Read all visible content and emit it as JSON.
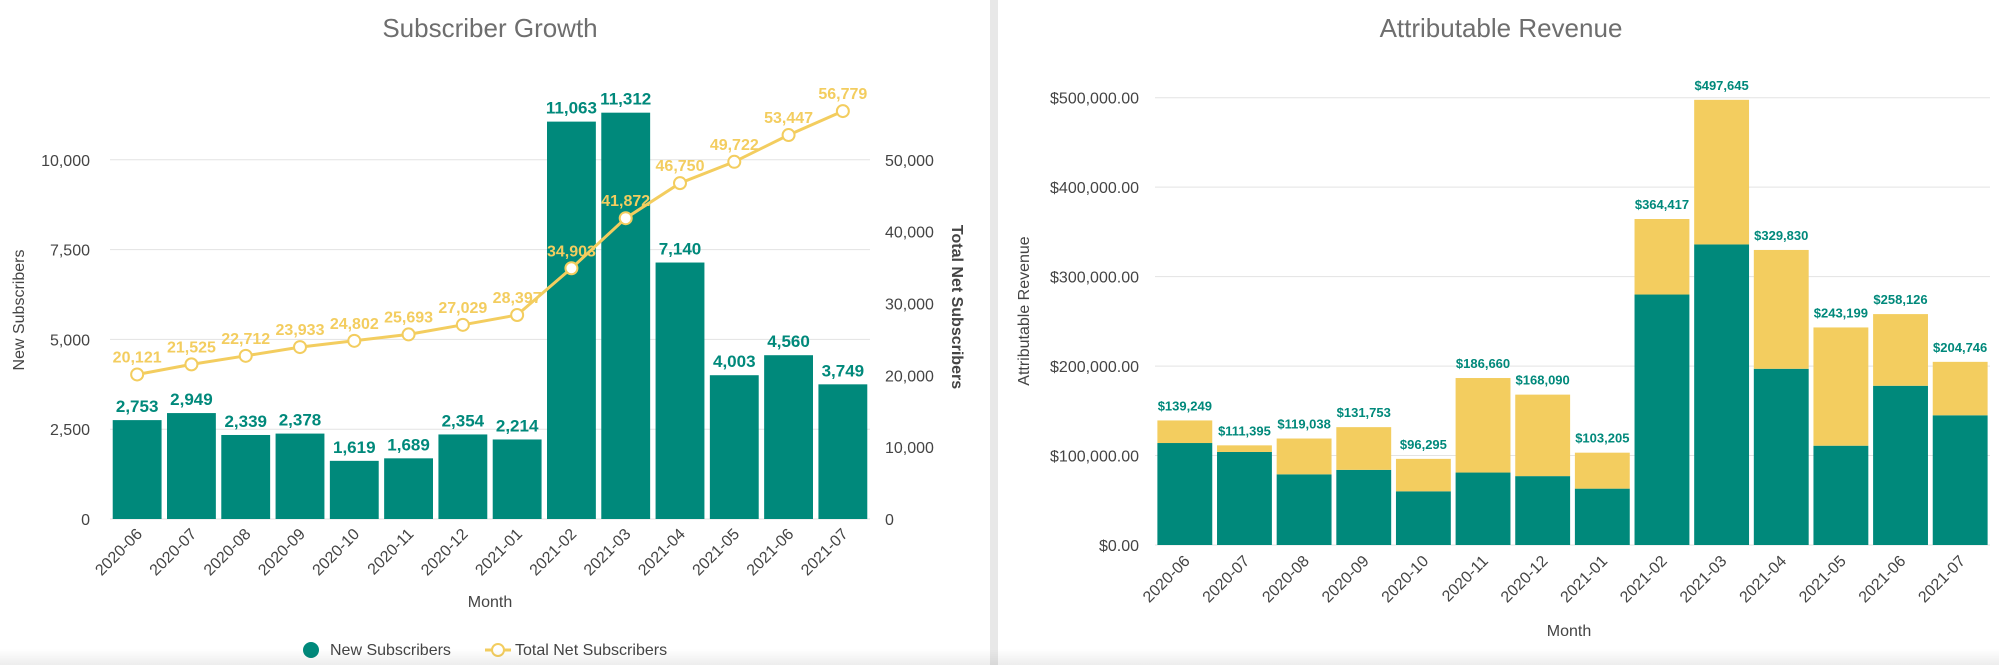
{
  "colors": {
    "teal": "#00897b",
    "gold": "#f3cd5f",
    "title": "#6e6e6e",
    "text": "#444444",
    "grid": "#e3e3e3"
  },
  "chart_data": [
    {
      "type": "bar",
      "title": "Subscriber Growth",
      "xlabel": "Month",
      "ylabel": "New Subscribers",
      "y2label": "Total Net Subscribers",
      "ylim": [
        0,
        12500
      ],
      "y2lim": [
        0,
        62500
      ],
      "yticks": [
        "0",
        "2,500",
        "5,000",
        "7,500",
        "10,000"
      ],
      "y2ticks": [
        "0",
        "10,000",
        "20,000",
        "30,000",
        "40,000",
        "50,000"
      ],
      "categories": [
        "2020-06",
        "2020-07",
        "2020-08",
        "2020-09",
        "2020-10",
        "2020-11",
        "2020-12",
        "2021-01",
        "2021-02",
        "2021-03",
        "2021-04",
        "2021-05",
        "2021-06",
        "2021-07"
      ],
      "series": [
        {
          "name": "New Subscribers",
          "type": "bar",
          "axis": "left",
          "values": [
            2753,
            2949,
            2339,
            2378,
            1619,
            1689,
            2354,
            2214,
            11063,
            11312,
            7140,
            4003,
            4560,
            3749
          ],
          "labels": [
            "2,753",
            "2,949",
            "2,339",
            "2,378",
            "1,619",
            "1,689",
            "2,354",
            "2,214",
            "11,063",
            "11,312",
            "7,140",
            "4,003",
            "4,560",
            "3,749"
          ]
        },
        {
          "name": "Total Net Subscribers",
          "type": "line",
          "axis": "right",
          "values": [
            20121,
            21525,
            22712,
            23933,
            24802,
            25693,
            27029,
            28397,
            34903,
            41872,
            46750,
            49722,
            53447,
            56779
          ],
          "labels": [
            "20,121",
            "21,525",
            "22,712",
            "23,933",
            "24,802",
            "25,693",
            "27,029",
            "28,397",
            "34,903",
            "41,872",
            "46,750",
            "49,722",
            "53,447",
            "56,779"
          ]
        }
      ],
      "legend": [
        "New Subscribers",
        "Total Net Subscribers"
      ],
      "legend_position": "bottom"
    },
    {
      "type": "bar",
      "stacked": true,
      "title": "Attributable Revenue",
      "xlabel": "Month",
      "ylabel": "Attributable Revenue",
      "ylim": [
        0,
        550000
      ],
      "yticks": [
        "$0.00",
        "$100,000.00",
        "$200,000.00",
        "$300,000.00",
        "$400,000.00",
        "$500,000.00"
      ],
      "categories": [
        "2020-06",
        "2020-07",
        "2020-08",
        "2020-09",
        "2020-10",
        "2020-11",
        "2020-12",
        "2021-01",
        "2021-02",
        "2021-03",
        "2021-04",
        "2021-05",
        "2021-06",
        "2021-07"
      ],
      "series": [
        {
          "name": "lower segment",
          "color": "teal",
          "values": [
            114000,
            104000,
            79000,
            84000,
            60000,
            81000,
            77000,
            63000,
            280000,
            336000,
            197000,
            111000,
            178000,
            145000
          ]
        },
        {
          "name": "upper segment",
          "color": "gold",
          "values": [
            25249,
            7395,
            40038,
            47753,
            36295,
            105660,
            91090,
            40205,
            84417,
            161645,
            132830,
            132199,
            80126,
            59746
          ]
        }
      ],
      "totals": [
        139249,
        111395,
        119038,
        131753,
        96295,
        186660,
        168090,
        103205,
        364417,
        497645,
        329830,
        243199,
        258126,
        204746
      ],
      "total_labels": [
        "$139,249",
        "$111,395",
        "$119,038",
        "$131,753",
        "$96,295",
        "$186,660",
        "$168,090",
        "$103,205",
        "$364,417",
        "$497,645",
        "$329,830",
        "$243,199",
        "$258,126",
        "$204,746"
      ]
    }
  ]
}
